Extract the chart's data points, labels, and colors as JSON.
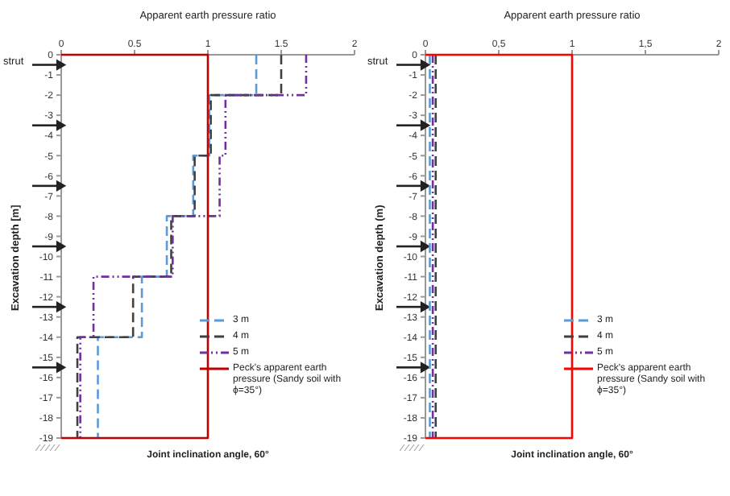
{
  "chart_data": [
    {
      "type": "line",
      "xlabel": "Apparent earth pressure ratio",
      "ylabel": "Excavation depth [m]",
      "xlim": [
        0,
        2
      ],
      "xticks": [
        0,
        0.5,
        1,
        1.5,
        2
      ],
      "ylim": [
        -19,
        0
      ],
      "yticks": [
        0,
        -1,
        -2,
        -3,
        -4,
        -5,
        -6,
        -7,
        -8,
        -9,
        -10,
        -11,
        -12,
        -13,
        -14,
        -15,
        -16,
        -17,
        -18,
        -19
      ],
      "grid": false,
      "legend": "bottom right",
      "marker": "none",
      "series": [
        {
          "type": "scatter",
          "color": "#222222",
          "marker": "triangle",
          "x": [
            0,
            0,
            0,
            0,
            0,
            0
          ],
          "values": [
            -0.5,
            -3.5,
            -6.5,
            -9.5,
            -12.5,
            -15.5
          ]
        },
        {
          "name": "3 m",
          "color": "#5b9bd5",
          "line_style": "dashed",
          "x": [
            1.33,
            1.33,
            1.01,
            1.01,
            0.9,
            0.9,
            0.72,
            0.72,
            0.55,
            0.55,
            0.25,
            0.25
          ],
          "values": [
            0,
            -2,
            -2,
            -5,
            -5,
            -8,
            -8,
            -11,
            -11,
            -14,
            -14,
            -19
          ]
        },
        {
          "name": "4 m",
          "color": "#404040",
          "line_style": "dashed",
          "x": [
            1.5,
            1.5,
            1.02,
            1.02,
            0.91,
            0.91,
            0.75,
            0.75,
            0.49,
            0.49,
            0.11,
            0.11
          ],
          "values": [
            0,
            -2,
            -2,
            -5,
            -5,
            -8,
            -8,
            -11,
            -11,
            -14,
            -14,
            -19
          ]
        },
        {
          "name": "5 m",
          "color": "#7030a0",
          "line_style": "dotted",
          "x": [
            1.67,
            1.67,
            1.12,
            1.12,
            1.08,
            1.08,
            0.76,
            0.76,
            0.22,
            0.22,
            0.13,
            0.13
          ],
          "values": [
            0,
            -2,
            -2,
            -5,
            -5,
            -8,
            -8,
            -11,
            -11,
            -14,
            -14,
            -19
          ]
        },
        {
          "name": "Peck's apparent earth pressure (Sandy soil with ϕ=35°)",
          "color": "#c00000",
          "line_style": "solid",
          "x": [
            0,
            1,
            1,
            0
          ],
          "values": [
            0,
            0,
            -19,
            -19
          ]
        }
      ],
      "annotations": [
        "strut",
        "Joint inclination angle, 60°"
      ]
    },
    {
      "type": "line",
      "xlabel": "Apparent earth pressure ratio",
      "ylabel": "Excavation depth (m)",
      "xlim": [
        0,
        2
      ],
      "xticks": [
        0,
        {
          "value": 0.5,
          "label": "0,5"
        },
        1,
        {
          "value": 1.5,
          "label": "1,5"
        },
        2
      ],
      "ylim": [
        -19,
        0
      ],
      "yticks": [
        0,
        -1,
        -2,
        -3,
        -4,
        -5,
        -6,
        -7,
        -8,
        -9,
        -10,
        -11,
        -12,
        -13,
        -14,
        -15,
        -16,
        -17,
        -18,
        -19
      ],
      "grid": false,
      "legend": "bottom right",
      "marker": "none",
      "series": [
        {
          "type": "scatter",
          "color": "#222222",
          "marker": "triangle",
          "x": [
            0,
            0,
            0,
            0,
            0,
            0
          ],
          "values": [
            -0.5,
            -3.5,
            -6.5,
            -9.5,
            -12.5,
            -15.5
          ]
        },
        {
          "name": "3 m",
          "color": "#5b9bd5",
          "line_style": "dashed",
          "x": [
            0.03,
            0.03
          ],
          "values": [
            0,
            -19
          ]
        },
        {
          "name": "4 m",
          "color": "#404040",
          "line_style": "dashed",
          "x": [
            0.07,
            0.07
          ],
          "values": [
            0,
            -19
          ]
        },
        {
          "name": "5 m",
          "color": "#7030a0",
          "line_style": "dotted",
          "x": [
            0.05,
            0.05
          ],
          "values": [
            0,
            -19
          ]
        },
        {
          "name": "Peck's apparent earth pressure (Sandy soil with ϕ=35°)",
          "color": "#ff0000",
          "line_style": "solid",
          "x": [
            0,
            1,
            1,
            0
          ],
          "values": [
            0,
            0,
            -19,
            -19
          ]
        }
      ],
      "annotations": [
        "strut",
        "Joint inclination angle, 60°"
      ]
    }
  ]
}
